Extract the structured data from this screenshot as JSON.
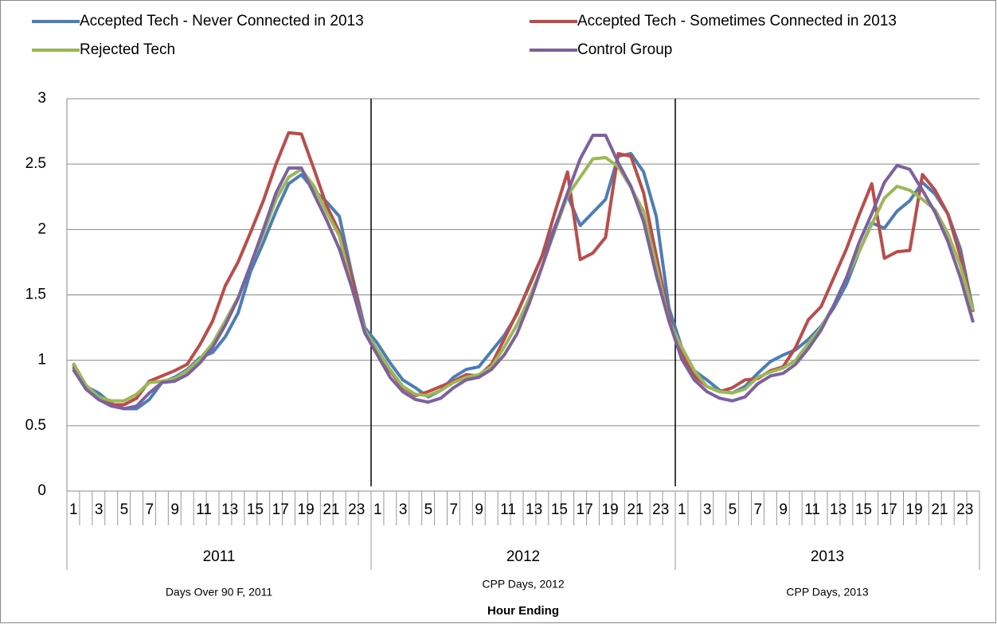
{
  "chart_data": {
    "type": "line",
    "categories": [
      "1",
      null,
      "3",
      null,
      "5",
      null,
      "7",
      null,
      "9",
      null,
      "11",
      null,
      "13",
      null,
      "15",
      null,
      "17",
      null,
      "19",
      null,
      "21",
      null,
      "23",
      null,
      "1",
      null,
      "3",
      null,
      "5",
      null,
      "7",
      null,
      "9",
      null,
      "11",
      null,
      "13",
      null,
      "15",
      null,
      "17",
      null,
      "19",
      null,
      "21",
      null,
      "23",
      null,
      "1",
      null,
      "3",
      null,
      "5",
      null,
      "7",
      null,
      "9",
      null,
      "11",
      null,
      "13",
      null,
      "15",
      null,
      "17",
      null,
      "19",
      null,
      "21",
      null,
      "23",
      null
    ],
    "groups": [
      "2011",
      "2012",
      "2013"
    ],
    "group_notes": [
      "Days Over 90 F, 2011",
      "CPP Days, 2012",
      "CPP Days, 2013"
    ],
    "x_label": "Hour Ending",
    "ylim": [
      0,
      3
    ],
    "yticks": [
      0,
      0.5,
      1,
      1.5,
      2,
      2.5,
      3
    ],
    "grid": true,
    "legend": "top",
    "series": [
      {
        "name": "Accepted Tech - Never Connected in 2013",
        "color": "#4a7ebb",
        "values": [
          0.97,
          0.8,
          0.75,
          0.67,
          0.63,
          0.63,
          0.7,
          0.83,
          0.87,
          0.93,
          1.02,
          1.06,
          1.18,
          1.36,
          1.68,
          1.9,
          2.14,
          2.35,
          2.42,
          2.3,
          2.21,
          2.1,
          1.65,
          1.25,
          1.13,
          0.98,
          0.85,
          0.79,
          0.72,
          0.77,
          0.87,
          0.93,
          0.95,
          1.07,
          1.19,
          1.35,
          1.58,
          1.8,
          2.02,
          2.26,
          2.03,
          2.13,
          2.23,
          2.56,
          2.58,
          2.44,
          2.1,
          1.4,
          1.1,
          0.92,
          0.85,
          0.77,
          0.75,
          0.8,
          0.9,
          0.99,
          1.04,
          1.08,
          1.16,
          1.26,
          1.4,
          1.58,
          1.83,
          2.05,
          2.01,
          2.14,
          2.22,
          2.36,
          2.27,
          2.12,
          1.85,
          1.38
        ]
      },
      {
        "name": "Accepted Tech - Sometimes Connected in 2013",
        "color": "#be4b48",
        "values": [
          0.95,
          0.8,
          0.72,
          0.66,
          0.66,
          0.71,
          0.84,
          0.88,
          0.92,
          0.97,
          1.12,
          1.3,
          1.57,
          1.75,
          1.98,
          2.22,
          2.5,
          2.74,
          2.73,
          2.46,
          2.18,
          1.98,
          1.62,
          1.22,
          1.06,
          0.92,
          0.79,
          0.73,
          0.76,
          0.8,
          0.84,
          0.89,
          0.88,
          0.97,
          1.16,
          1.36,
          1.57,
          1.8,
          2.13,
          2.44,
          1.77,
          1.82,
          1.94,
          2.58,
          2.56,
          2.28,
          1.8,
          1.33,
          1.05,
          0.88,
          0.8,
          0.76,
          0.79,
          0.85,
          0.86,
          0.92,
          0.95,
          1.1,
          1.31,
          1.41,
          1.63,
          1.85,
          2.11,
          2.35,
          1.78,
          1.83,
          1.84,
          2.42,
          2.3,
          2.12,
          1.79,
          1.37
        ]
      },
      {
        "name": "Rejected Tech",
        "color": "#98b954",
        "values": [
          0.98,
          0.81,
          0.72,
          0.69,
          0.69,
          0.74,
          0.83,
          0.84,
          0.86,
          0.92,
          1.01,
          1.13,
          1.3,
          1.48,
          1.73,
          1.97,
          2.23,
          2.4,
          2.46,
          2.33,
          2.13,
          1.95,
          1.55,
          1.23,
          1.08,
          0.93,
          0.8,
          0.74,
          0.73,
          0.77,
          0.83,
          0.87,
          0.89,
          0.95,
          1.1,
          1.27,
          1.48,
          1.72,
          1.99,
          2.26,
          2.4,
          2.54,
          2.55,
          2.48,
          2.32,
          2.14,
          1.72,
          1.3,
          1.1,
          0.92,
          0.8,
          0.76,
          0.75,
          0.78,
          0.87,
          0.91,
          0.94,
          1.0,
          1.13,
          1.25,
          1.42,
          1.63,
          1.83,
          2.04,
          2.24,
          2.33,
          2.3,
          2.23,
          2.15,
          1.97,
          1.72,
          1.38
        ]
      },
      {
        "name": "Control Group",
        "color": "#7d60a0",
        "values": [
          0.93,
          0.78,
          0.7,
          0.65,
          0.63,
          0.65,
          0.75,
          0.83,
          0.84,
          0.89,
          0.98,
          1.1,
          1.27,
          1.47,
          1.73,
          2.0,
          2.28,
          2.47,
          2.47,
          2.27,
          2.07,
          1.85,
          1.55,
          1.21,
          1.04,
          0.87,
          0.76,
          0.7,
          0.68,
          0.71,
          0.79,
          0.85,
          0.87,
          0.93,
          1.04,
          1.2,
          1.44,
          1.72,
          2.01,
          2.28,
          2.54,
          2.72,
          2.72,
          2.51,
          2.33,
          2.06,
          1.65,
          1.3,
          1.01,
          0.85,
          0.76,
          0.71,
          0.69,
          0.72,
          0.82,
          0.88,
          0.9,
          0.97,
          1.09,
          1.23,
          1.42,
          1.63,
          1.9,
          2.12,
          2.36,
          2.49,
          2.46,
          2.3,
          2.13,
          1.91,
          1.63,
          1.29
        ]
      }
    ]
  }
}
